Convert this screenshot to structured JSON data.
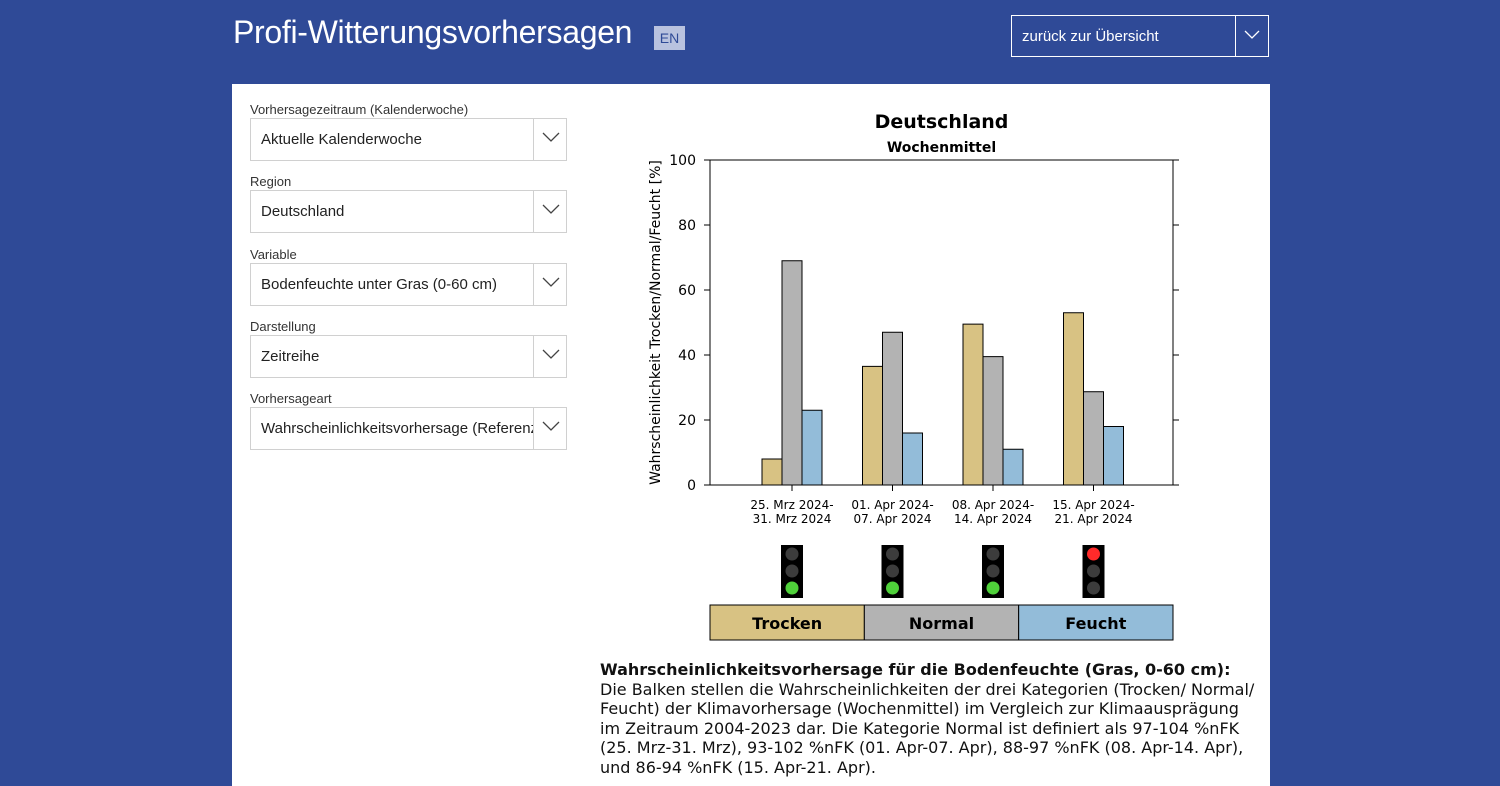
{
  "header": {
    "title": "Profi-Witterungsvorhersagen",
    "lang_button": "EN",
    "back_select": "zurück zur Übersicht"
  },
  "controls": [
    {
      "label": "Vorhersagezeitraum (Kalenderwoche)",
      "value": "Aktuelle Kalenderwoche"
    },
    {
      "label": "Region",
      "value": "Deutschland"
    },
    {
      "label": "Variable",
      "value": "Bodenfeuchte unter Gras (0-60 cm)"
    },
    {
      "label": "Darstellung",
      "value": "Zeitreihe"
    },
    {
      "label": "Vorhersageart",
      "value": "Wahrscheinlichkeitsvorhersage (Referenz)"
    }
  ],
  "colors": {
    "trocken": "#d8c283",
    "normal": "#b3b3b3",
    "feucht": "#93bcd9",
    "light_red": "#ff2a2a",
    "light_green": "#4fd13a",
    "light_off": "#3c3c3c",
    "background": "#2f4a97"
  },
  "chart_data": {
    "type": "bar",
    "title": "Deutschland",
    "subtitle": "Wochenmittel",
    "ylabel": "Wahrscheinlichkeit Trocken/Normal/Feucht [%]",
    "xlabel": "",
    "ylim": [
      0,
      100
    ],
    "yticks": [
      0,
      20,
      40,
      60,
      80,
      100
    ],
    "categories": [
      [
        "25. Mrz 2024-",
        "31. Mrz 2024"
      ],
      [
        "01. Apr 2024-",
        "07. Apr 2024"
      ],
      [
        "08. Apr 2024-",
        "14. Apr 2024"
      ],
      [
        "15. Apr 2024-",
        "21. Apr 2024"
      ]
    ],
    "series": [
      {
        "name": "Trocken",
        "values": [
          8,
          36.5,
          49.5,
          53
        ]
      },
      {
        "name": "Normal",
        "values": [
          69,
          47,
          39.5,
          28.7
        ]
      },
      {
        "name": "Feucht",
        "values": [
          23,
          16,
          11,
          18
        ]
      }
    ],
    "traffic_lights": [
      "green",
      "green",
      "green",
      "red"
    ],
    "legend": [
      "Trocken",
      "Normal",
      "Feucht"
    ]
  },
  "description": {
    "title": "Wahrscheinlichkeitsvorhersage für die Bodenfeuchte (Gras, 0-60 cm):",
    "text": "Die Balken stellen die Wahrscheinlichkeiten der drei Kategorien (Trocken/ Normal/ Feucht) der Klimavorhersage (Wochenmittel) im Vergleich zur Klimaausprägung im Zeitraum 2004-2023 dar. Die Kategorie Normal ist definiert als 97-104 %nFK (25. Mrz-31. Mrz), 93-102 %nFK (01. Apr-07. Apr), 88-97 %nFK (08. Apr-14. Apr), und 86-94 %nFK (15. Apr-21. Apr)."
  }
}
